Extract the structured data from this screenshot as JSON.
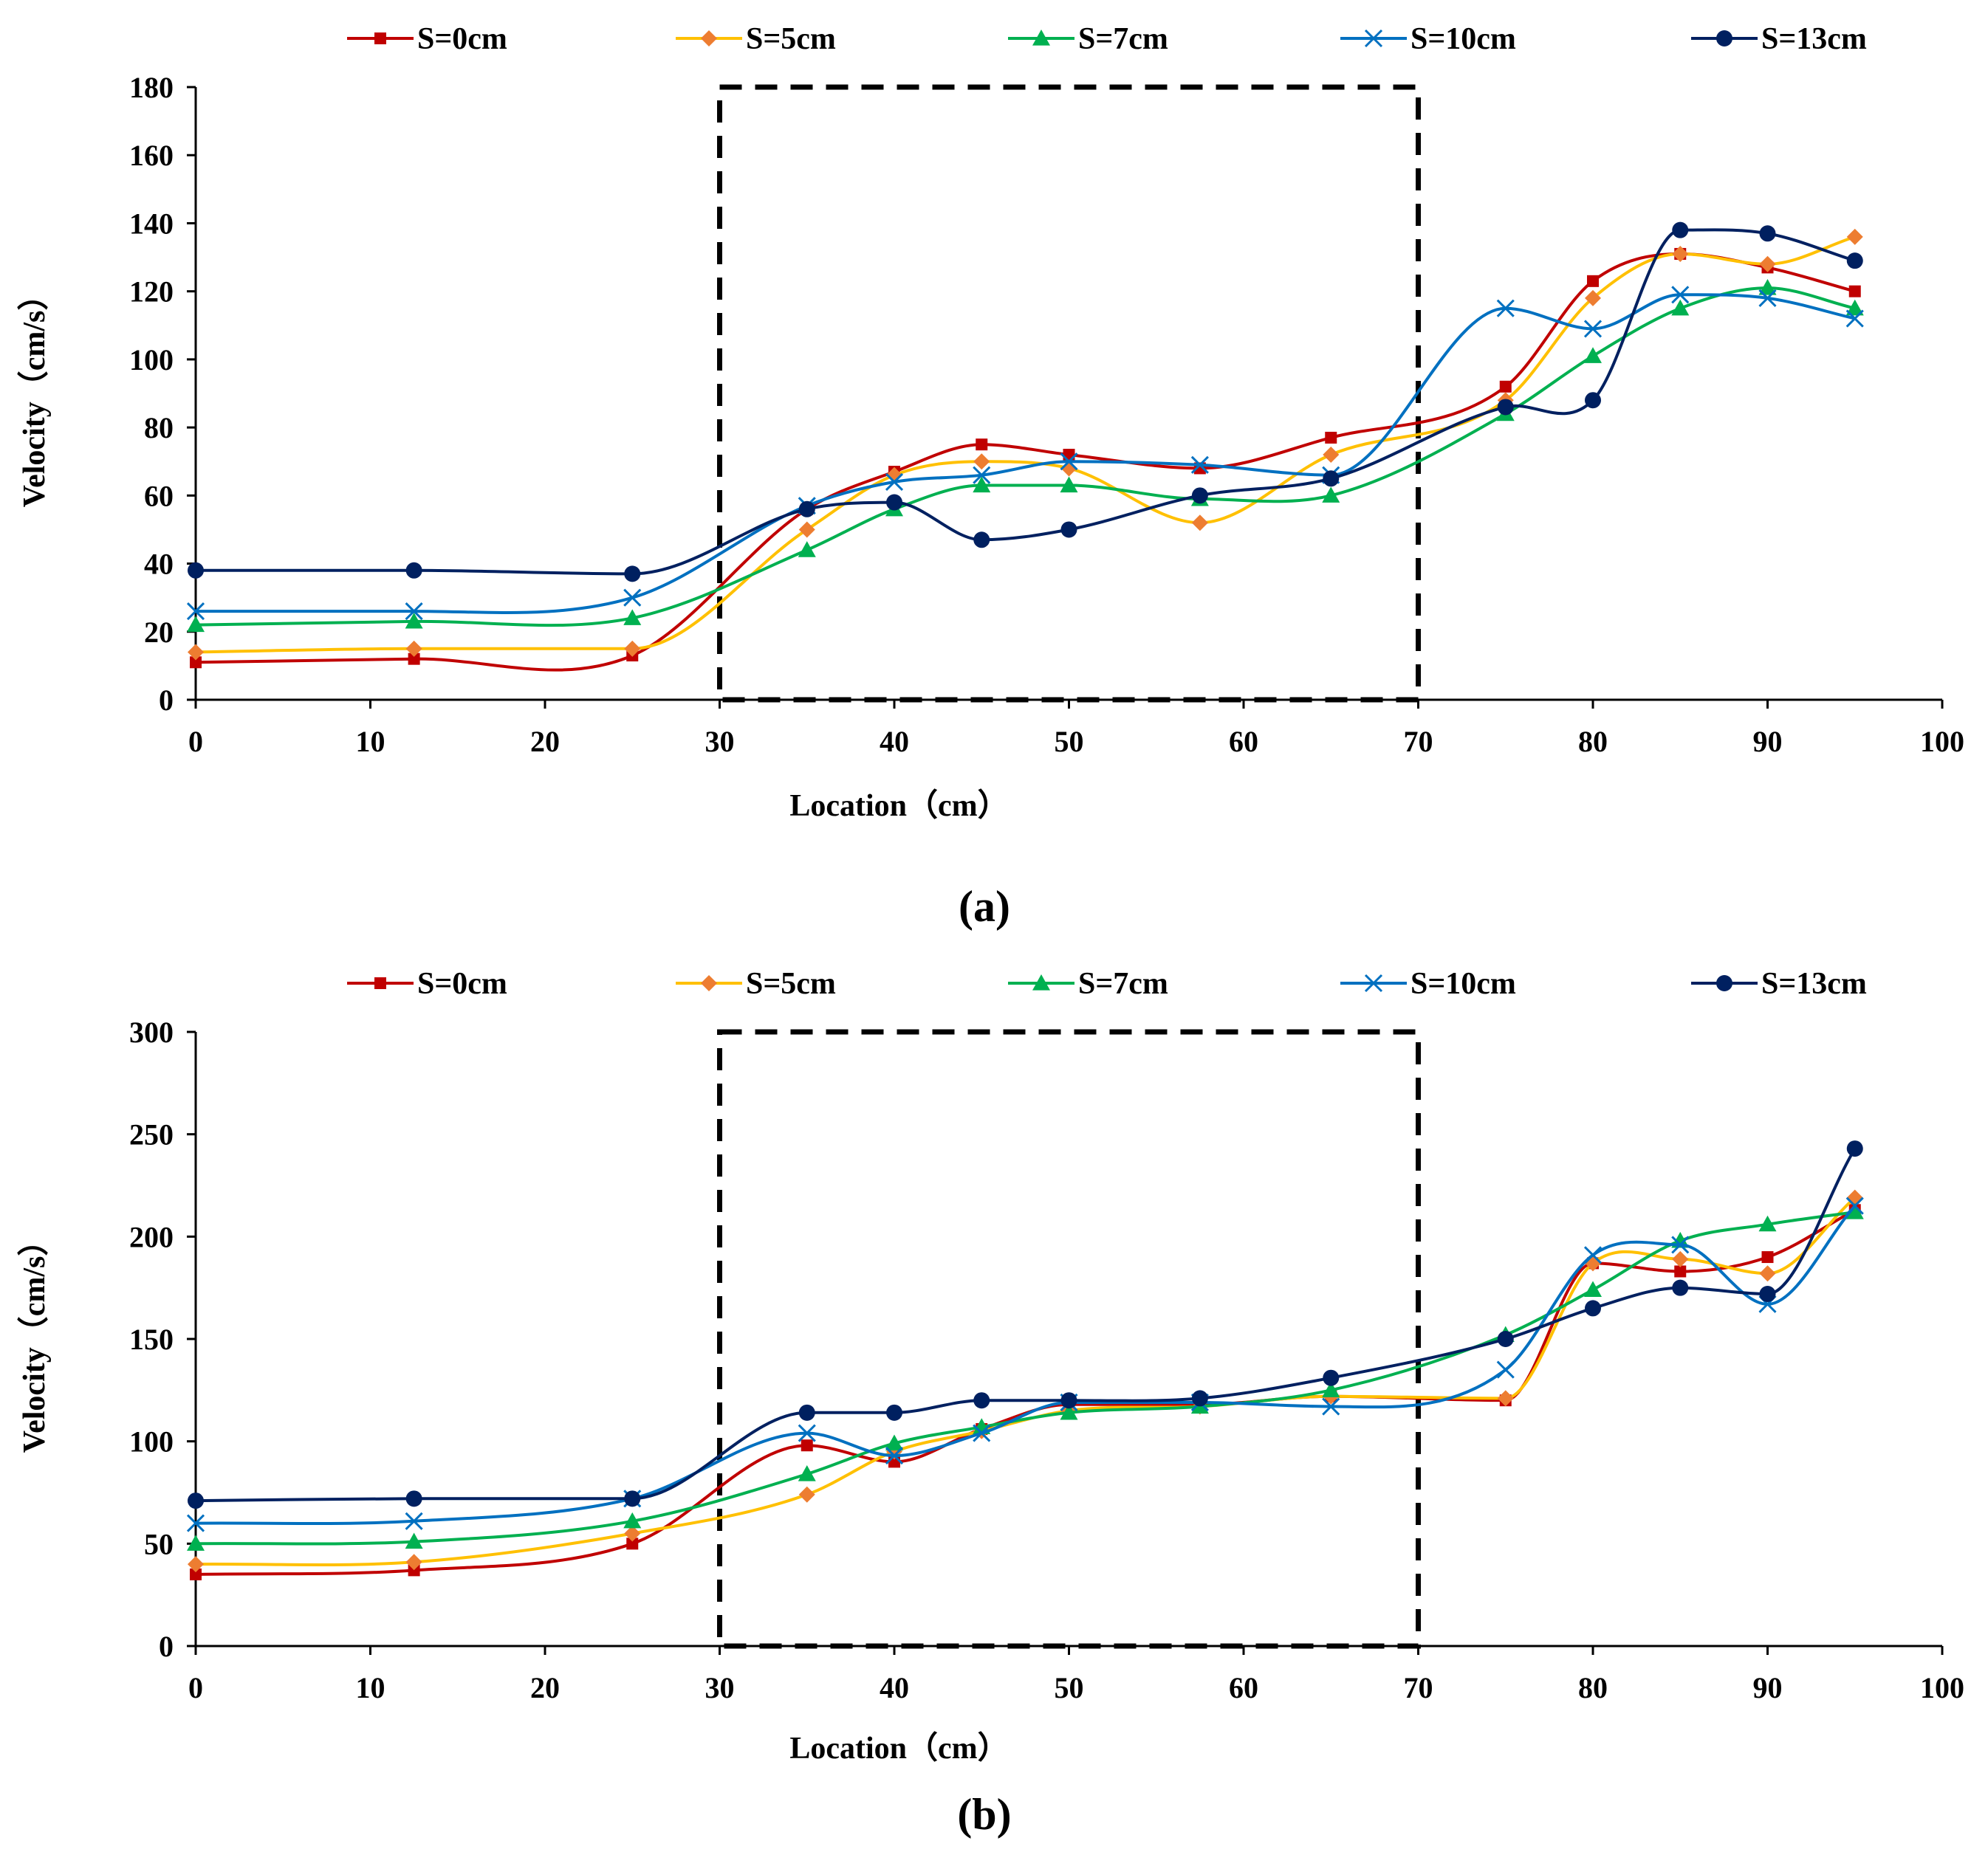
{
  "colors": {
    "S=0cm": "#c00000",
    "S=5cm": "#ffc000",
    "S=7cm": "#00b050",
    "S=10cm": "#0070c0",
    "S=13cm": "#002060",
    "marker_S=5cm": "#ed7d31"
  },
  "chart_data": [
    {
      "type": "line",
      "caption": "(a)",
      "xlabel": "Location（cm）",
      "ylabel": "Velocity（cm/s）",
      "xlim": [
        0,
        100
      ],
      "ylim": [
        0,
        180
      ],
      "xticks": [
        0,
        10,
        20,
        30,
        40,
        50,
        60,
        70,
        80,
        90,
        100
      ],
      "yticks": [
        0,
        20,
        40,
        60,
        80,
        100,
        120,
        140,
        160,
        180
      ],
      "highlight_box": {
        "x": [
          30,
          70
        ],
        "y": [
          0,
          180
        ],
        "style": "dashed"
      },
      "legend_position": "top",
      "x": [
        0,
        12.5,
        25,
        35,
        40,
        45,
        50,
        57.5,
        65,
        75,
        80,
        85,
        90,
        95
      ],
      "series": [
        {
          "name": "S=0cm",
          "marker": "square",
          "values": [
            11,
            12,
            13,
            56,
            67,
            75,
            72,
            68,
            77,
            92,
            123,
            131,
            127,
            120
          ]
        },
        {
          "name": "S=5cm",
          "marker": "diamond",
          "values": [
            14,
            15,
            15,
            50,
            66,
            70,
            68,
            52,
            72,
            88,
            118,
            131,
            128,
            136
          ]
        },
        {
          "name": "S=7cm",
          "marker": "triangle",
          "values": [
            22,
            23,
            24,
            44,
            56,
            63,
            63,
            59,
            60,
            84,
            101,
            115,
            121,
            115
          ]
        },
        {
          "name": "S=10cm",
          "marker": "x",
          "values": [
            26,
            26,
            30,
            57,
            64,
            66,
            70,
            69,
            66,
            115,
            109,
            119,
            118,
            112
          ]
        },
        {
          "name": "S=13cm",
          "marker": "circle",
          "values": [
            38,
            38,
            37,
            56,
            58,
            47,
            50,
            60,
            65,
            86,
            88,
            138,
            137,
            129
          ]
        }
      ]
    },
    {
      "type": "line",
      "caption": "(b)",
      "xlabel": "Location（cm）",
      "ylabel": "Velocity（cm/s）",
      "xlim": [
        0,
        100
      ],
      "ylim": [
        0,
        300
      ],
      "xticks": [
        0,
        10,
        20,
        30,
        40,
        50,
        60,
        70,
        80,
        90,
        100
      ],
      "yticks": [
        0,
        50,
        100,
        150,
        200,
        250,
        300
      ],
      "highlight_box": {
        "x": [
          30,
          70
        ],
        "y": [
          0,
          300
        ],
        "style": "dashed"
      },
      "legend_position": "top",
      "x": [
        0,
        12.5,
        25,
        35,
        40,
        45,
        50,
        57.5,
        65,
        75,
        80,
        85,
        90,
        95
      ],
      "series": [
        {
          "name": "S=0cm",
          "marker": "square",
          "values": [
            35,
            37,
            50,
            98,
            90,
            106,
            118,
            118,
            122,
            120,
            187,
            183,
            190,
            213
          ]
        },
        {
          "name": "S=5cm",
          "marker": "diamond",
          "values": [
            40,
            41,
            55,
            74,
            95,
            105,
            115,
            117,
            122,
            121,
            187,
            189,
            182,
            219
          ]
        },
        {
          "name": "S=7cm",
          "marker": "triangle",
          "values": [
            50,
            51,
            61,
            84,
            99,
            107,
            114,
            117,
            125,
            152,
            174,
            198,
            206,
            212
          ]
        },
        {
          "name": "S=10cm",
          "marker": "x",
          "values": [
            60,
            61,
            72,
            104,
            93,
            104,
            119,
            119,
            117,
            135,
            191,
            196,
            167,
            215
          ]
        },
        {
          "name": "S=13cm",
          "marker": "circle",
          "values": [
            71,
            72,
            72,
            114,
            114,
            120,
            120,
            121,
            131,
            150,
            165,
            175,
            172,
            243
          ]
        }
      ]
    }
  ]
}
